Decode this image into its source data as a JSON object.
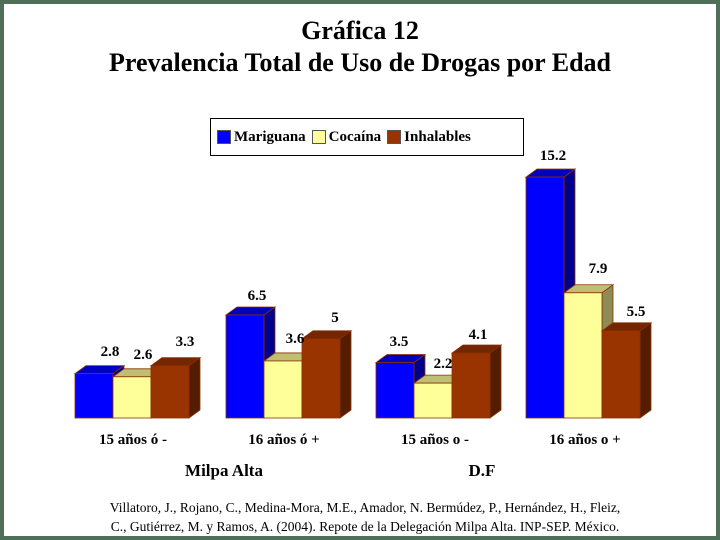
{
  "title_line1": "Gráfica 12",
  "title_line2": "Prevalencia Total de Uso de Drogas por Edad",
  "source_line1": "Villatoro, J., Rojano, C., Medina-Mora, M.E., Amador, N. Bermúdez, P., Hernández, H., Fleiz,",
  "source_line2": "C., Gutiérrez, M. y Ramos, A. (2004). Repote de la Delegación Milpa Alta. INP-SEP. México.",
  "chart_data": {
    "type": "bar",
    "categories": [
      "15 años ó -",
      "16 años ó +",
      "15 años o -",
      "16 años o +"
    ],
    "groups": [
      {
        "label": "Milpa Alta",
        "categories": [
          0,
          1
        ]
      },
      {
        "label": "D.F",
        "categories": [
          2,
          3
        ]
      }
    ],
    "series": [
      {
        "name": "Mariguana",
        "color": "#0000ff",
        "values": [
          2.8,
          6.5,
          3.5,
          15.2
        ],
        "labels": [
          "2.8",
          "6.5",
          "3.5",
          "15.2"
        ]
      },
      {
        "name": "Cocaína",
        "color": "#ffff99",
        "values": [
          2.6,
          3.6,
          2.2,
          7.9
        ],
        "labels": [
          "2.6",
          "3.6",
          "2.2",
          "7.9"
        ]
      },
      {
        "name": "Inhalables",
        "color": "#993300",
        "values": [
          3.3,
          5,
          4.1,
          5.5
        ],
        "labels": [
          "3.3",
          "5",
          "4.1",
          "5.5"
        ]
      }
    ],
    "ylim": [
      0,
      16
    ],
    "grid": false,
    "legend_position": "top-center",
    "projection": "3d"
  }
}
